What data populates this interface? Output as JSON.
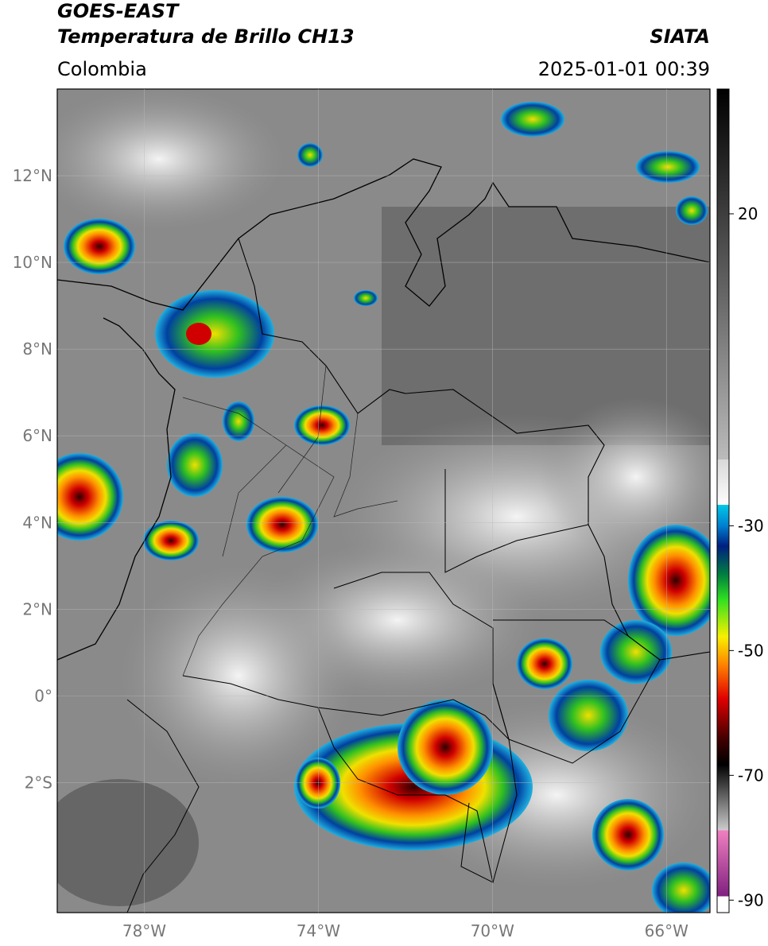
{
  "header": {
    "satellite": "GOES-EAST",
    "product": "Temperatura de Brillo CH13",
    "region": "Colombia",
    "source": "SIATA",
    "datetime": "2025-01-01 00:39"
  },
  "map": {
    "xlim": [
      -80,
      -65
    ],
    "ylim": [
      -5,
      14
    ],
    "xticks": [
      {
        "value": -78,
        "label": "78°W"
      },
      {
        "value": -74,
        "label": "74°W"
      },
      {
        "value": -70,
        "label": "70°W"
      },
      {
        "value": -66,
        "label": "66°W"
      }
    ],
    "yticks": [
      {
        "value": 12,
        "label": "12°N"
      },
      {
        "value": 10,
        "label": "10°N"
      },
      {
        "value": 8,
        "label": "8°N"
      },
      {
        "value": 6,
        "label": "6°N"
      },
      {
        "value": 4,
        "label": "4°N"
      },
      {
        "value": 2,
        "label": "2°N"
      },
      {
        "value": 0,
        "label": "0°"
      },
      {
        "value": -2,
        "label": "2°S"
      }
    ]
  },
  "colorbar": {
    "clim": [
      -92,
      40
    ],
    "ticks": [
      20,
      -30,
      -50,
      -70,
      -90
    ]
  }
}
